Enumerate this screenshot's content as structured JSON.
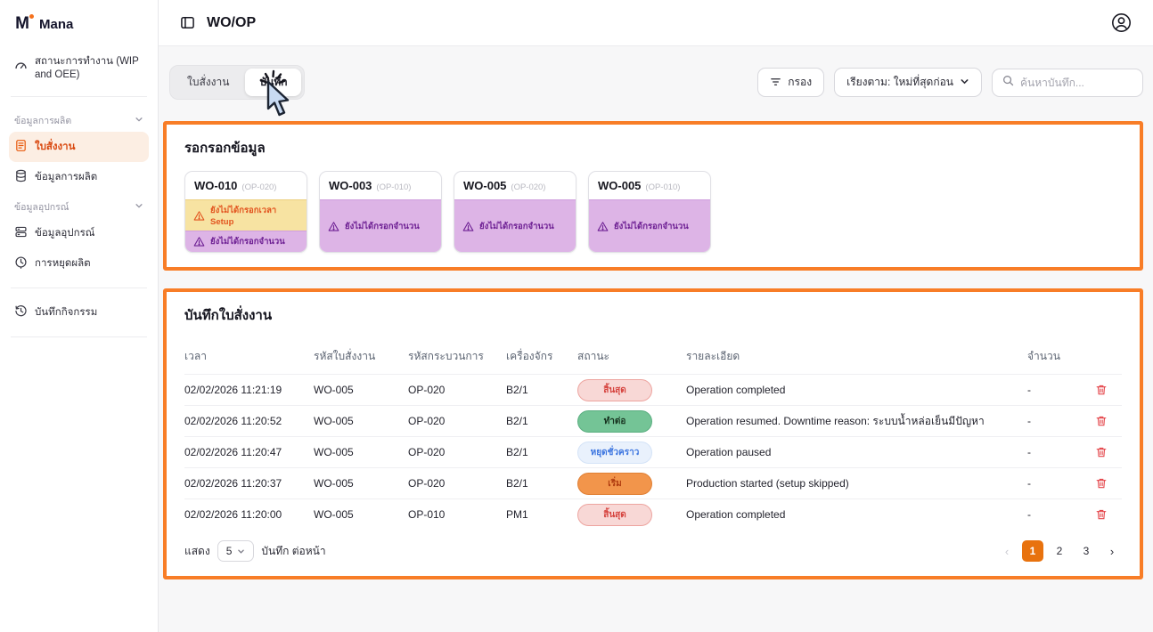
{
  "brand": {
    "name": "Mana"
  },
  "header": {
    "title": "WO/OP"
  },
  "sidebar": {
    "status_item": {
      "label": "สถานะการทำงาน (WIP and OEE)"
    },
    "groups": [
      {
        "label": "ข้อมูลการผลิต",
        "items": [
          {
            "label": "ใบสั่งงาน",
            "active": true
          },
          {
            "label": "ข้อมูลการผลิต",
            "active": false
          }
        ]
      },
      {
        "label": "ข้อมูลอุปกรณ์",
        "items": [
          {
            "label": "ข้อมูลอุปกรณ์",
            "active": false
          },
          {
            "label": "การหยุดผลิต",
            "active": false
          }
        ]
      }
    ],
    "bottom_item": {
      "label": "บันทึกกิจกรรม"
    }
  },
  "tabs": [
    {
      "label": "ใบสั่งงาน",
      "active": false
    },
    {
      "label": "บันทึก",
      "active": true
    }
  ],
  "toolbar": {
    "filter_label": "กรอง",
    "sort_label": "เรียงตาม: ใหม่ที่สุดก่อน",
    "search_placeholder": "ค้นหาบันทึก..."
  },
  "pending_section": {
    "title": "รอกรอกข้อมูล",
    "cards": [
      {
        "wo": "WO-010",
        "op": "(OP-020)",
        "warnings": [
          {
            "type": "setup",
            "text": "ยังไม่ได้กรอกเวลา Setup"
          },
          {
            "type": "quantity",
            "text": "ยังไม่ได้กรอกจำนวน"
          }
        ]
      },
      {
        "wo": "WO-003",
        "op": "(OP-010)",
        "warnings": [
          {
            "type": "quantity",
            "text": "ยังไม่ได้กรอกจำนวน"
          }
        ]
      },
      {
        "wo": "WO-005",
        "op": "(OP-020)",
        "warnings": [
          {
            "type": "quantity",
            "text": "ยังไม่ได้กรอกจำนวน"
          }
        ]
      },
      {
        "wo": "WO-005",
        "op": "(OP-010)",
        "warnings": [
          {
            "type": "quantity",
            "text": "ยังไม่ได้กรอกจำนวน"
          }
        ]
      }
    ]
  },
  "log_section": {
    "title": "บันทึกใบสั่งงาน",
    "columns": [
      "เวลา",
      "รหัสใบสั่งงาน",
      "รหัสกระบวนการ",
      "เครื่องจักร",
      "สถานะ",
      "รายละเอียด",
      "จำนวน"
    ],
    "rows": [
      {
        "time": "02/02/2026 11:21:19",
        "wo": "WO-005",
        "op": "OP-020",
        "machine": "B2/1",
        "status": "สิ้นสุด",
        "status_type": "ended",
        "detail": "Operation completed",
        "qty": "-"
      },
      {
        "time": "02/02/2026 11:20:52",
        "wo": "WO-005",
        "op": "OP-020",
        "machine": "B2/1",
        "status": "ทำต่อ",
        "status_type": "resumed",
        "detail": "Operation resumed. Downtime reason: ระบบน้ำหล่อเย็นมีปัญหา",
        "qty": "-"
      },
      {
        "time": "02/02/2026 11:20:47",
        "wo": "WO-005",
        "op": "OP-020",
        "machine": "B2/1",
        "status": "หยุดชั่วคราว",
        "status_type": "paused",
        "detail": "Operation paused",
        "qty": "-"
      },
      {
        "time": "02/02/2026 11:20:37",
        "wo": "WO-005",
        "op": "OP-020",
        "machine": "B2/1",
        "status": "เริ่ม",
        "status_type": "started",
        "detail": "Production started (setup skipped)",
        "qty": "-"
      },
      {
        "time": "02/02/2026 11:20:00",
        "wo": "WO-005",
        "op": "OP-010",
        "machine": "PM1",
        "status": "สิ้นสุด",
        "status_type": "ended",
        "detail": "Operation completed",
        "qty": "-"
      }
    ],
    "footer": {
      "show_label": "แสดง",
      "page_size": "5",
      "per_page_label": "บันทึก ต่อหน้า",
      "pages": [
        "1",
        "2",
        "3"
      ],
      "active_page": "1",
      "prev_arrow": "‹",
      "next_arrow": "›"
    }
  },
  "colors": {
    "accent_orange": "#e8720e",
    "annotation_border": "#f87d27",
    "active_nav_bg": "#fceee3",
    "badge_ended_bg": "#f8d8d6",
    "badge_resumed_bg": "#74c496",
    "badge_paused_bg": "#e9f1fc",
    "badge_started_bg": "#f2954b",
    "warning_setup_bg": "#f7e3a2",
    "warning_quantity_bg": "#ddb4e6",
    "trash_red": "#e5484d"
  }
}
